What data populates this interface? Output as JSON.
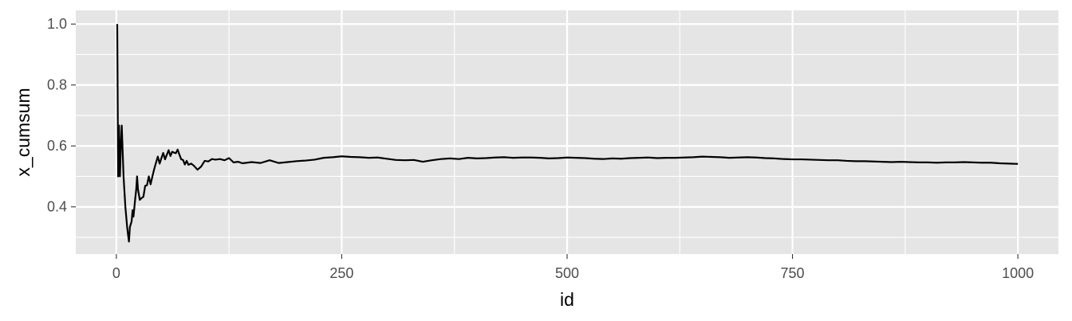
{
  "chart_data": {
    "type": "line",
    "title": "",
    "xlabel": "id",
    "ylabel": "x_cumsum",
    "xlim": [
      -45,
      1045
    ],
    "ylim": [
      0.245,
      1.045
    ],
    "x_ticks": [
      0,
      250,
      500,
      750,
      1000
    ],
    "x_tick_labels": [
      "0",
      "250",
      "500",
      "750",
      "1000"
    ],
    "y_ticks": [
      0.4,
      0.6,
      0.8,
      1.0
    ],
    "y_tick_labels": [
      "0.4",
      "0.6",
      "0.8",
      "1.0"
    ],
    "grid": true,
    "theme": "ggplot2 grey",
    "colors": {
      "panel": "#e5e5e5",
      "grid": "#ffffff",
      "line": "#000000"
    },
    "series": [
      {
        "x": [
          1,
          2,
          3,
          4,
          5,
          6,
          8,
          10,
          12,
          13,
          14,
          15,
          17,
          18,
          19,
          21,
          22,
          23,
          24,
          26,
          28,
          30,
          32,
          34,
          36,
          38,
          40,
          42,
          44,
          46,
          48,
          50,
          52,
          54,
          56,
          58,
          60,
          62,
          64,
          66,
          68,
          70,
          72,
          74,
          76,
          78,
          80,
          83,
          86,
          90,
          94,
          98,
          102,
          106,
          110,
          115,
          120,
          125,
          130,
          135,
          140,
          145,
          150,
          160,
          170,
          180,
          190,
          200,
          210,
          220,
          230,
          240,
          250,
          260,
          270,
          280,
          290,
          300,
          310,
          320,
          330,
          340,
          350,
          360,
          370,
          380,
          390,
          400,
          410,
          420,
          430,
          440,
          450,
          460,
          470,
          480,
          490,
          500,
          510,
          520,
          530,
          540,
          550,
          560,
          570,
          580,
          590,
          600,
          610,
          620,
          630,
          640,
          650,
          660,
          670,
          680,
          690,
          700,
          710,
          720,
          730,
          740,
          750,
          760,
          770,
          780,
          790,
          800,
          810,
          820,
          830,
          840,
          850,
          860,
          870,
          880,
          890,
          900,
          910,
          920,
          930,
          940,
          950,
          960,
          970,
          980,
          990,
          1000
        ],
        "values": [
          1.0,
          0.5,
          0.667,
          0.5,
          0.6,
          0.667,
          0.5,
          0.4,
          0.333,
          0.308,
          0.286,
          0.333,
          0.353,
          0.389,
          0.368,
          0.429,
          0.455,
          0.5,
          0.458,
          0.423,
          0.429,
          0.433,
          0.469,
          0.471,
          0.5,
          0.474,
          0.5,
          0.524,
          0.545,
          0.565,
          0.542,
          0.56,
          0.577,
          0.556,
          0.571,
          0.586,
          0.567,
          0.581,
          0.578,
          0.576,
          0.588,
          0.571,
          0.556,
          0.554,
          0.539,
          0.551,
          0.538,
          0.542,
          0.535,
          0.522,
          0.532,
          0.551,
          0.549,
          0.557,
          0.555,
          0.557,
          0.553,
          0.56,
          0.546,
          0.548,
          0.543,
          0.545,
          0.547,
          0.544,
          0.553,
          0.544,
          0.547,
          0.55,
          0.552,
          0.555,
          0.561,
          0.563,
          0.566,
          0.564,
          0.563,
          0.561,
          0.562,
          0.558,
          0.554,
          0.553,
          0.554,
          0.548,
          0.553,
          0.557,
          0.559,
          0.557,
          0.561,
          0.559,
          0.56,
          0.562,
          0.563,
          0.561,
          0.562,
          0.562,
          0.561,
          0.559,
          0.56,
          0.562,
          0.561,
          0.56,
          0.558,
          0.557,
          0.559,
          0.558,
          0.56,
          0.561,
          0.562,
          0.56,
          0.561,
          0.561,
          0.562,
          0.563,
          0.565,
          0.564,
          0.563,
          0.561,
          0.562,
          0.563,
          0.562,
          0.56,
          0.559,
          0.557,
          0.556,
          0.556,
          0.555,
          0.554,
          0.553,
          0.553,
          0.551,
          0.55,
          0.55,
          0.549,
          0.548,
          0.547,
          0.548,
          0.547,
          0.546,
          0.546,
          0.545,
          0.546,
          0.546,
          0.547,
          0.546,
          0.545,
          0.545,
          0.543,
          0.542,
          0.541
        ]
      }
    ]
  }
}
